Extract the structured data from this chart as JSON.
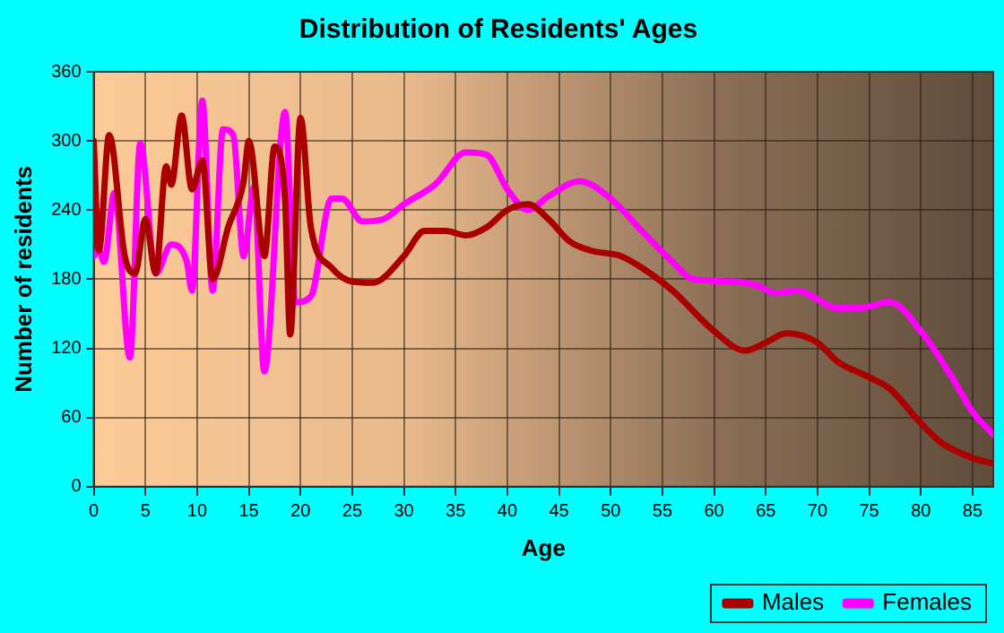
{
  "chart_data": {
    "type": "line",
    "title": "Distribution of Residents' Ages",
    "xlabel": "Age",
    "ylabel": "Number of residents",
    "xlim": [
      0,
      87
    ],
    "xticks": [
      0,
      5,
      10,
      15,
      20,
      25,
      30,
      35,
      40,
      45,
      50,
      55,
      60,
      65,
      70,
      75,
      80,
      85
    ],
    "ylim": [
      0,
      360
    ],
    "yticks": [
      0,
      60,
      120,
      180,
      240,
      300,
      360
    ],
    "grid": true,
    "legend": "bottom right",
    "marker": "none",
    "line_style": "solid",
    "series": [
      {
        "name": "Males",
        "color": "#aa0000",
        "x": [
          0,
          0.5,
          1.5,
          3,
          4,
          5,
          6,
          7,
          7.5,
          8.5,
          9.5,
          10.5,
          11.5,
          13,
          14.5,
          15,
          16.5,
          17.5,
          18.5,
          19,
          20,
          21,
          23,
          25,
          27,
          30,
          32,
          34,
          36,
          38,
          40,
          42,
          44,
          46,
          48,
          51,
          53,
          56,
          60,
          63,
          65,
          67,
          70,
          72,
          75,
          77,
          80,
          82,
          85,
          87
        ],
        "values": [
          300,
          205,
          305,
          200,
          185,
          232,
          185,
          278,
          262,
          322,
          258,
          283,
          180,
          225,
          265,
          300,
          200,
          295,
          250,
          132,
          320,
          225,
          190,
          178,
          177,
          200,
          222,
          222,
          218,
          225,
          240,
          245,
          232,
          213,
          205,
          200,
          190,
          170,
          135,
          118,
          125,
          133,
          125,
          108,
          95,
          85,
          55,
          38,
          25,
          20
        ]
      },
      {
        "name": "Females",
        "color": "#ff00ff",
        "x": [
          0,
          0.5,
          1,
          2,
          3.5,
          4.5,
          6,
          7.5,
          9,
          9.5,
          10.5,
          11.5,
          12.5,
          13.5,
          14.5,
          15.5,
          16.5,
          18.5,
          19.5,
          21,
          23,
          24,
          26,
          28,
          30,
          33,
          36,
          38,
          40,
          42,
          44,
          47,
          50,
          53,
          56,
          58,
          62,
          64,
          66,
          68,
          72,
          74,
          77,
          80,
          83,
          85,
          87
        ],
        "values": [
          200,
          205,
          195,
          255,
          112,
          298,
          185,
          210,
          195,
          170,
          335,
          170,
          310,
          305,
          200,
          260,
          100,
          325,
          160,
          165,
          250,
          250,
          230,
          232,
          245,
          262,
          290,
          288,
          258,
          240,
          252,
          265,
          250,
          222,
          195,
          180,
          178,
          175,
          168,
          170,
          155,
          155,
          160,
          135,
          95,
          65,
          45
        ]
      }
    ]
  }
}
